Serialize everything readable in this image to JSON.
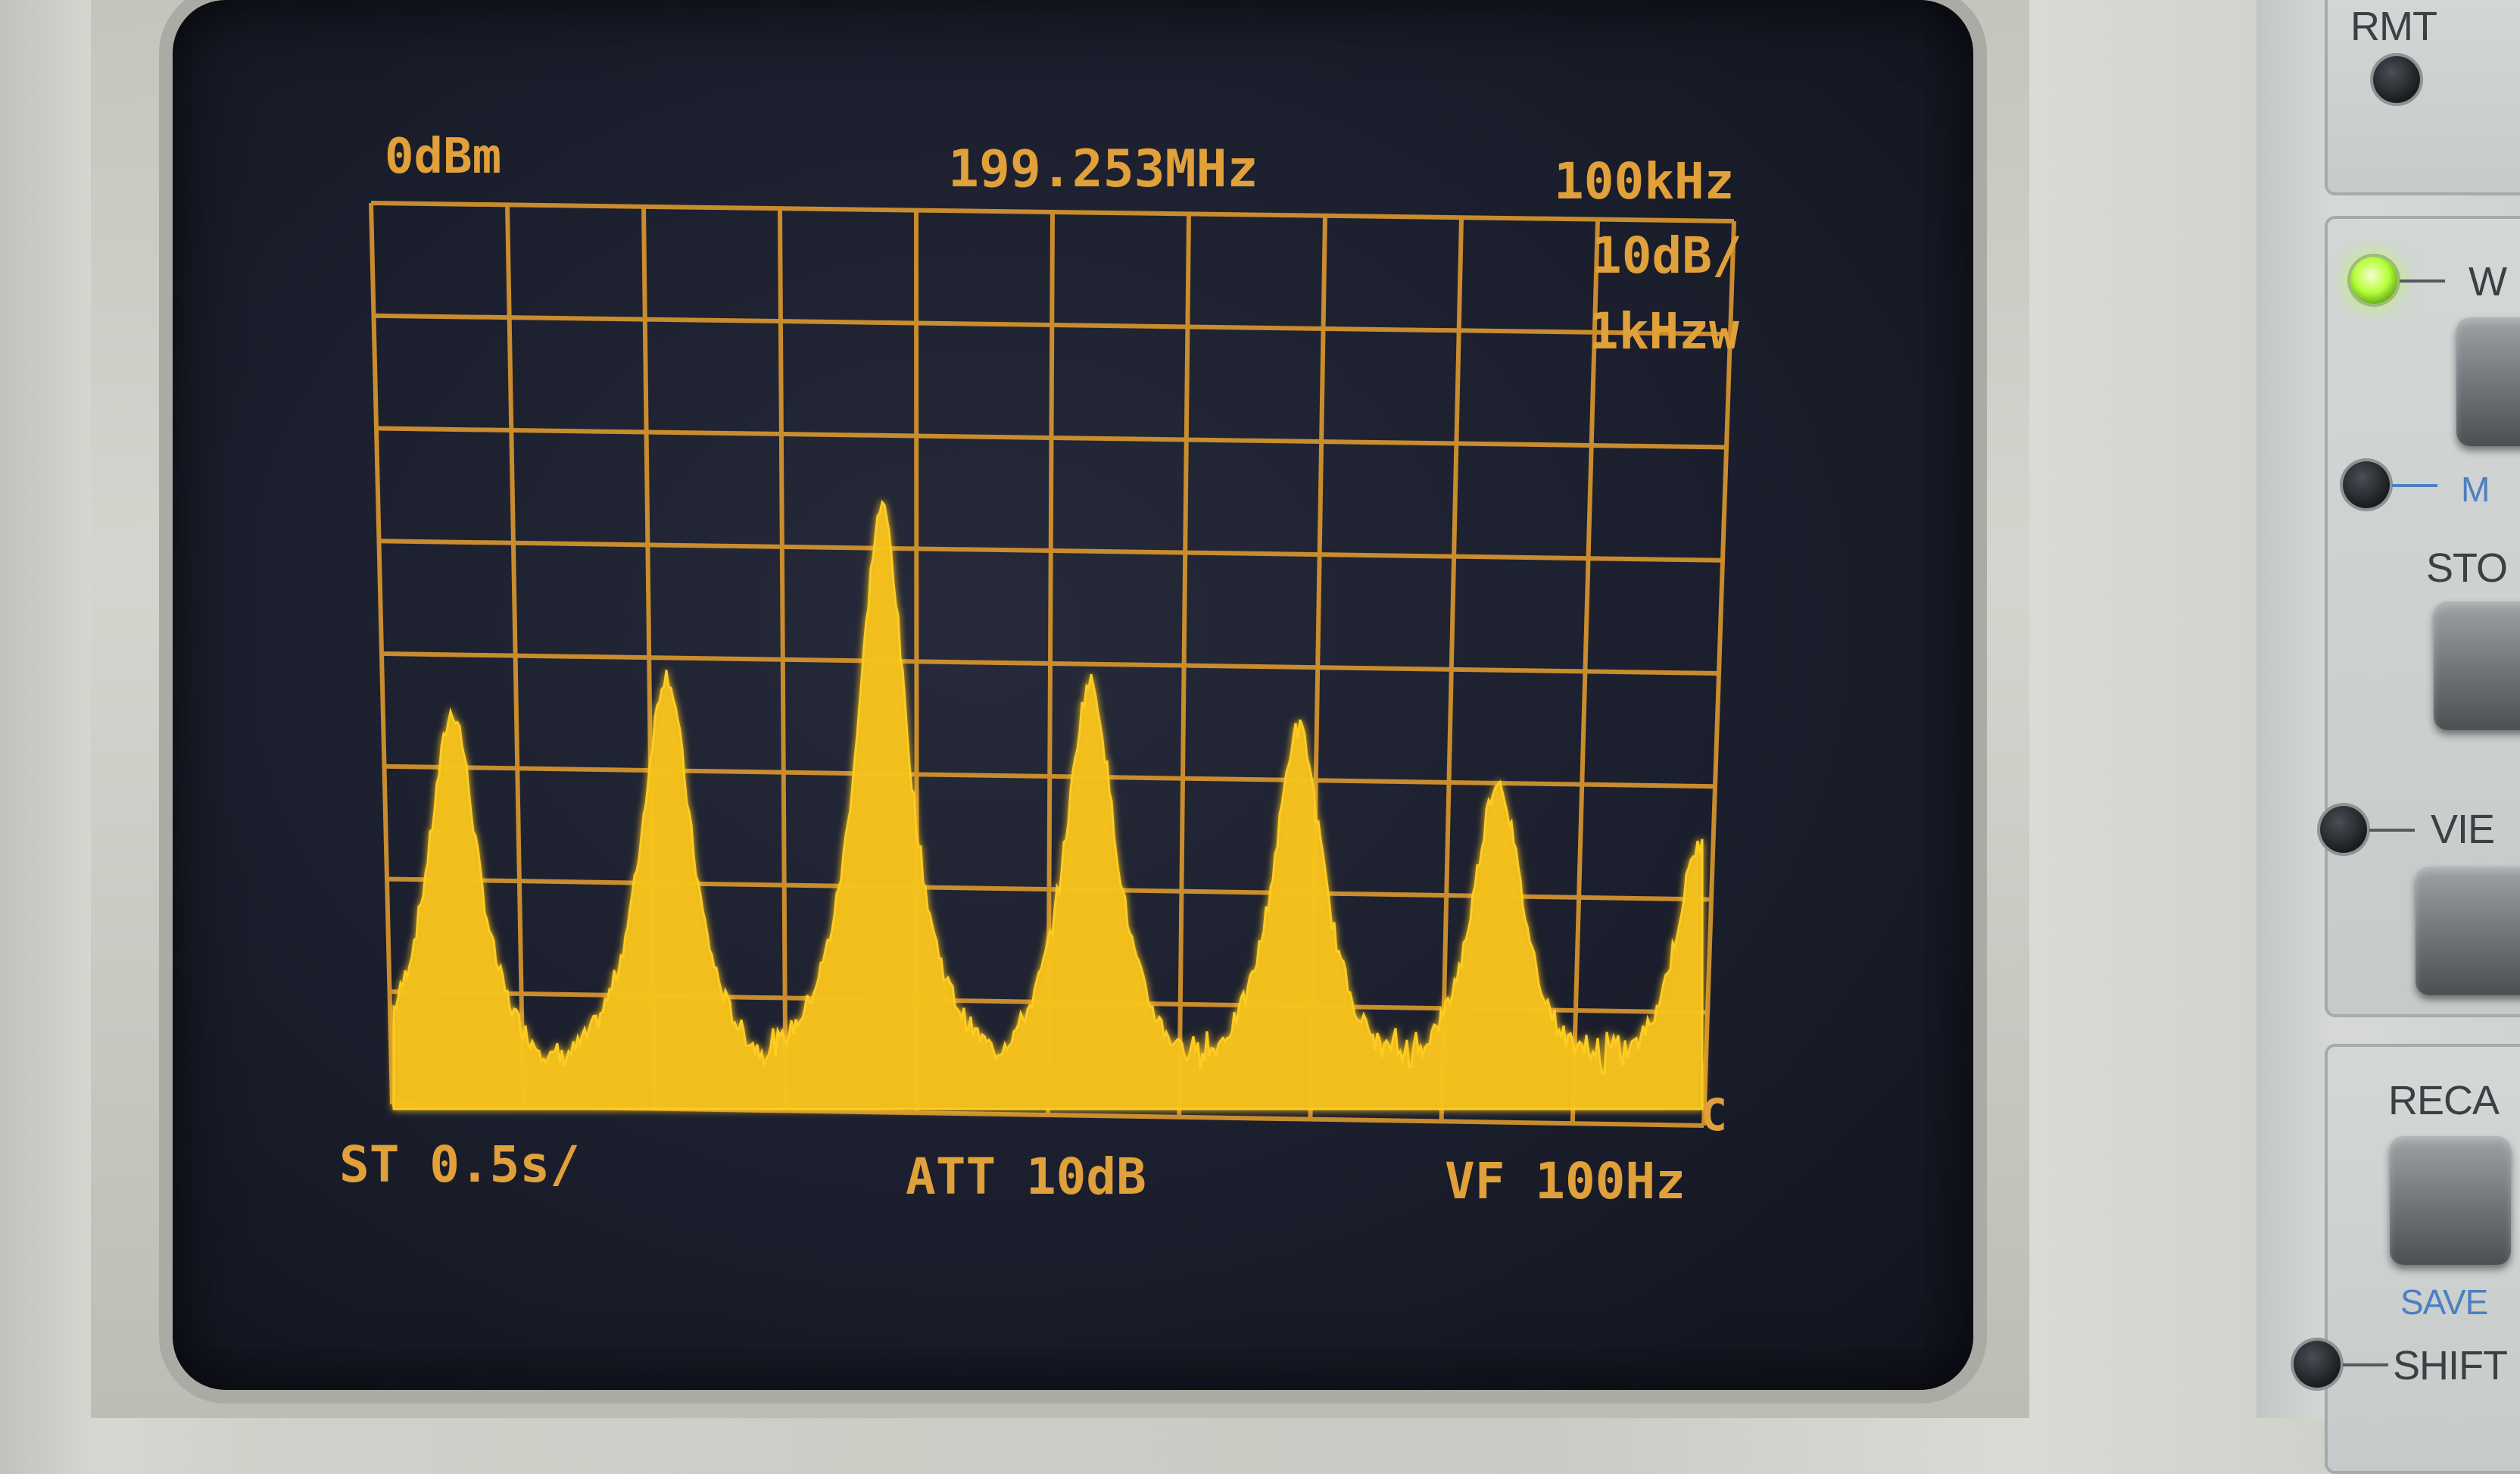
{
  "screen": {
    "ref_level": "0dBm",
    "center_freq": "199.253MHz",
    "span_div": "100kHz",
    "scale_div": "10dB/",
    "rbw": "1kHzw",
    "sweep_time": "ST 0.5s/",
    "attenuation": "ATT 10dB",
    "video_filter": "VF 100Hz",
    "marker_c": "C"
  },
  "trace_color": "#ffcc22",
  "graticule_color": "#d8962e",
  "panel": {
    "rmt_label": "RMT",
    "rmt_led": "off",
    "w_label": "W",
    "w_led": "on",
    "m_label": "M",
    "store_label": "STO",
    "view_label": "VIE",
    "recall_label": "RECA",
    "save_label": "SAVE",
    "shift_label": "SHIFT"
  }
}
